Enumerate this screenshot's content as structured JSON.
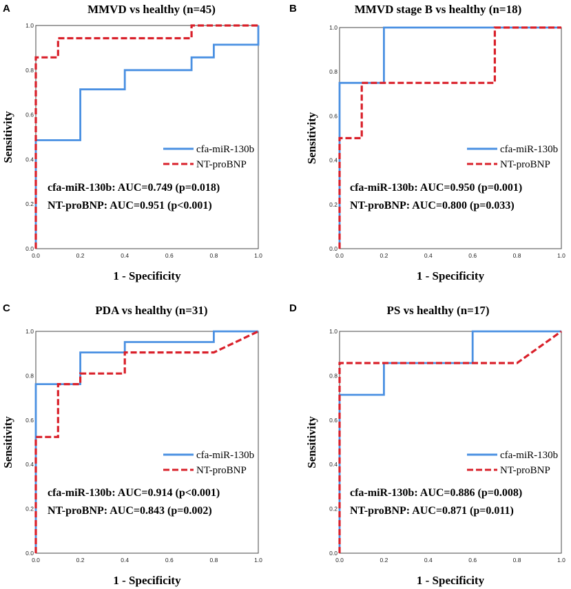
{
  "chart_data": [
    {
      "type": "line",
      "panel_letter": "A",
      "title": "MMVD vs healthy (n=45)",
      "xlabel": "1 - Specificity",
      "ylabel": "Sensitivity",
      "xlim": [
        0,
        1
      ],
      "ylim": [
        0,
        1
      ],
      "xticks": [
        "0.0",
        "0.2",
        "0.4",
        "0.6",
        "0.8",
        "1.0"
      ],
      "yticks": [
        "0.0",
        "0.2",
        "0.4",
        "0.6",
        "0.8",
        "1.0"
      ],
      "legend": [
        {
          "label": "cfa-miR-130b",
          "color": "#4a90e2",
          "style": "solid"
        },
        {
          "label": "NT-proBNP",
          "color": "#d9202a",
          "style": "dashed"
        }
      ],
      "annotations": [
        "cfa-miR-130b: AUC=0.749 (p=0.018)",
        "NT-proBNP: AUC=0.951 (p<0.001)"
      ],
      "series": [
        {
          "name": "cfa-miR-130b",
          "points": [
            [
              0,
              0
            ],
            [
              0,
              0.486
            ],
            [
              0.2,
              0.486
            ],
            [
              0.2,
              0.714
            ],
            [
              0.4,
              0.714
            ],
            [
              0.4,
              0.8
            ],
            [
              0.7,
              0.8
            ],
            [
              0.7,
              0.857
            ],
            [
              0.8,
              0.857
            ],
            [
              0.8,
              0.914
            ],
            [
              1.0,
              0.914
            ],
            [
              1.0,
              1.0
            ]
          ]
        },
        {
          "name": "NT-proBNP",
          "points": [
            [
              0,
              0
            ],
            [
              0,
              0.857
            ],
            [
              0.1,
              0.857
            ],
            [
              0.1,
              0.943
            ],
            [
              0.7,
              0.943
            ],
            [
              0.7,
              1.0
            ],
            [
              1.0,
              1.0
            ]
          ]
        }
      ]
    },
    {
      "type": "line",
      "panel_letter": "B",
      "title": "MMVD stage B vs healthy (n=18)",
      "xlabel": "1 - Specificity",
      "ylabel": "Sensitivity",
      "xlim": [
        0,
        1
      ],
      "ylim": [
        0,
        1
      ],
      "xticks": [
        "0.0",
        "0.2",
        "0.4",
        "0.6",
        "0.8",
        "1.0"
      ],
      "yticks": [
        "0.0",
        "0.2",
        "0.4",
        "0.6",
        "0.8",
        "1.0"
      ],
      "legend": [
        {
          "label": "cfa-miR-130b",
          "color": "#4a90e2",
          "style": "solid"
        },
        {
          "label": "NT-proBNP",
          "color": "#d9202a",
          "style": "dashed"
        }
      ],
      "annotations": [
        "cfa-miR-130b: AUC=0.950 (p=0.001)",
        "NT-proBNP: AUC=0.800 (p=0.033)"
      ],
      "series": [
        {
          "name": "cfa-miR-130b",
          "points": [
            [
              0,
              0
            ],
            [
              0,
              0.75
            ],
            [
              0.2,
              0.75
            ],
            [
              0.2,
              1.0
            ],
            [
              1.0,
              1.0
            ]
          ]
        },
        {
          "name": "NT-proBNP",
          "points": [
            [
              0,
              0
            ],
            [
              0,
              0.5
            ],
            [
              0.1,
              0.5
            ],
            [
              0.1,
              0.75
            ],
            [
              0.7,
              0.75
            ],
            [
              0.7,
              1.0
            ],
            [
              1.0,
              1.0
            ]
          ]
        }
      ]
    },
    {
      "type": "line",
      "panel_letter": "C",
      "title": "PDA vs healthy (n=31)",
      "xlabel": "1 - Specificity",
      "ylabel": "Sensitivity",
      "xlim": [
        0,
        1
      ],
      "ylim": [
        0,
        1
      ],
      "xticks": [
        "0.0",
        "0.2",
        "0.4",
        "0.6",
        "0.8",
        "1.0"
      ],
      "yticks": [
        "0.0",
        "0.2",
        "0.4",
        "0.6",
        "0.8",
        "1.0"
      ],
      "legend": [
        {
          "label": "cfa-miR-130b",
          "color": "#4a90e2",
          "style": "solid"
        },
        {
          "label": "NT-proBNP",
          "color": "#d9202a",
          "style": "dashed"
        }
      ],
      "annotations": [
        "cfa-miR-130b: AUC=0.914 (p<0.001)",
        "NT-proBNP: AUC=0.843 (p=0.002)"
      ],
      "series": [
        {
          "name": "cfa-miR-130b",
          "points": [
            [
              0,
              0
            ],
            [
              0,
              0.762
            ],
            [
              0.2,
              0.762
            ],
            [
              0.2,
              0.905
            ],
            [
              0.4,
              0.905
            ],
            [
              0.4,
              0.952
            ],
            [
              0.8,
              0.952
            ],
            [
              0.8,
              1.0
            ],
            [
              1.0,
              1.0
            ]
          ]
        },
        {
          "name": "NT-proBNP",
          "points": [
            [
              0,
              0
            ],
            [
              0,
              0.524
            ],
            [
              0.1,
              0.524
            ],
            [
              0.1,
              0.762
            ],
            [
              0.2,
              0.762
            ],
            [
              0.2,
              0.81
            ],
            [
              0.4,
              0.81
            ],
            [
              0.4,
              0.905
            ],
            [
              0.8,
              0.905
            ],
            [
              1.0,
              1.0
            ]
          ]
        }
      ]
    },
    {
      "type": "line",
      "panel_letter": "D",
      "title": "PS vs healthy (n=17)",
      "xlabel": "1 - Specificity",
      "ylabel": "Sensitivity",
      "xlim": [
        0,
        1
      ],
      "ylim": [
        0,
        1
      ],
      "xticks": [
        "0.0",
        "0.2",
        "0.4",
        "0.6",
        "0.8",
        "1.0"
      ],
      "yticks": [
        "0.0",
        "0.2",
        "0.4",
        "0.6",
        "0.8",
        "1.0"
      ],
      "legend": [
        {
          "label": "cfa-miR-130b",
          "color": "#4a90e2",
          "style": "solid"
        },
        {
          "label": "NT-proBNP",
          "color": "#d9202a",
          "style": "dashed"
        }
      ],
      "annotations": [
        "cfa-miR-130b: AUC=0.886 (p=0.008)",
        "NT-proBNP: AUC=0.871 (p=0.011)"
      ],
      "series": [
        {
          "name": "cfa-miR-130b",
          "points": [
            [
              0,
              0
            ],
            [
              0,
              0.714
            ],
            [
              0.2,
              0.714
            ],
            [
              0.2,
              0.857
            ],
            [
              0.6,
              0.857
            ],
            [
              0.6,
              1.0
            ],
            [
              1.0,
              1.0
            ]
          ]
        },
        {
          "name": "NT-proBNP",
          "points": [
            [
              0,
              0
            ],
            [
              0,
              0.857
            ],
            [
              0.8,
              0.857
            ],
            [
              1.0,
              1.0
            ]
          ]
        }
      ]
    }
  ]
}
